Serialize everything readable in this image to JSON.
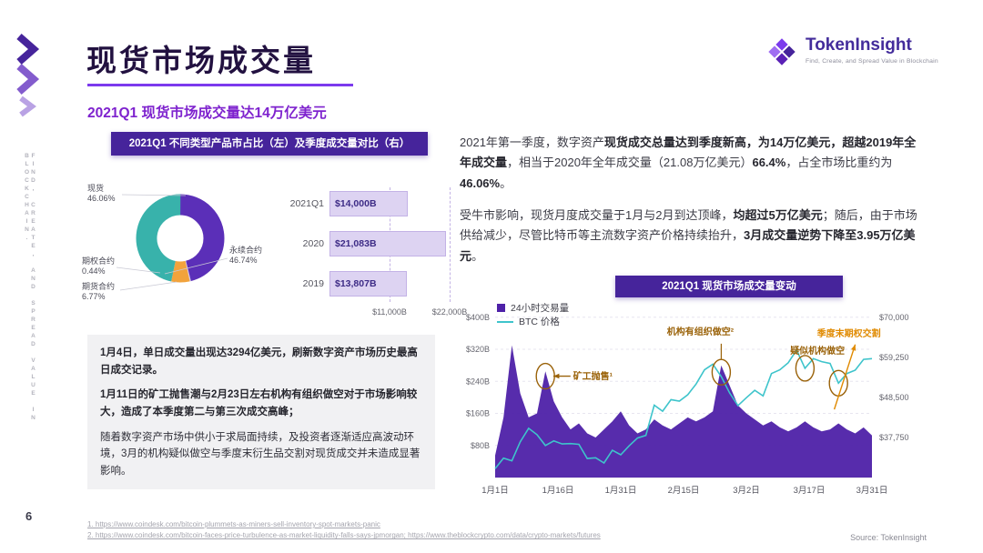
{
  "page": {
    "title": "现货市场成交量",
    "subtitle": "2021Q1 现货市场成交量达14万亿美元",
    "side_text": "FIND, CREATE, AND SPREAD VALUE IN BLOCKCHAIN.",
    "page_number": "6",
    "source": "Source: TokenInsight",
    "footnotes": [
      "1. https://www.coindesk.com/bitcoin-plummets-as-miners-sell-inventory-spot-markets-panic",
      "2. https://www.coindesk.com/bitcoin-faces-price-turbulence-as-market-liquidity-falls-says-jpmorgan; https://www.theblockcrypto.com/data/crypto-markets/futures"
    ]
  },
  "brand": {
    "name": "TokenInsight",
    "tagline": "Find, Create, and Spread Value in Blockchain"
  },
  "banners": {
    "left": "2021Q1 不同类型产品市占比（左）及季度成交量对比（右）",
    "right": "2021Q1 现货市场成交量变动"
  },
  "colors": {
    "banner_purple": "#46249B",
    "accent_purple": "#7C3AED",
    "area_purple": "#4E21A8",
    "price_teal": "#3EC4CB",
    "annotation_brown": "#9A6209",
    "annotation_orange": "#E08A00"
  },
  "paragraphs": {
    "right1": [
      {
        "t": "2021年第一季度，数字资产",
        "b": false
      },
      {
        "t": "现货成交总量达到季度新高，为14万亿美元，超越2019年全年成交量",
        "b": true
      },
      {
        "t": "，相当于2020年全年成交量（21.08万亿美元）",
        "b": false
      },
      {
        "t": "66.4%",
        "b": true
      },
      {
        "t": "，占全市场比重约为",
        "b": false
      },
      {
        "t": "46.06%",
        "b": true
      },
      {
        "t": "。",
        "b": false
      }
    ],
    "right2": [
      {
        "t": "受牛市影响，现货月度成交量于1月与2月到达顶峰，",
        "b": false
      },
      {
        "t": "均超过5万亿美元",
        "b": true
      },
      {
        "t": "；随后，由于市场供给减少，尽管比特币等主流数字资产价格持续抬升，",
        "b": false
      },
      {
        "t": "3月成交量逆势下降至3.95万亿美元",
        "b": true
      },
      {
        "t": "。",
        "b": false
      }
    ],
    "box1": [
      {
        "t": "1月4日，单日成交量出现达3294亿美元，刷新数字资产市场历史最高日成交记录。",
        "b": true
      }
    ],
    "box2": [
      {
        "t": "1月11日的矿工抛售潮与2月23日左右机构有组织做空对于市场影响较大，造成了本季度第二与第三次成交高峰；",
        "b": true
      }
    ],
    "box3": [
      {
        "t": "随着数字资产市场中供小于求局面持续，及投资者逐渐适应高波动环境，3月的机构疑似做空与季度末衍生品交割对现货成交并未造成显著影响。",
        "b": false
      }
    ]
  },
  "chart_data": [
    {
      "type": "pie",
      "title": "2021Q1 不同类型产品市占比",
      "segments": [
        {
          "label": "现货",
          "value": 46.06,
          "pct": "46.06%",
          "color": "#5B2FB8"
        },
        {
          "label": "期权合约",
          "value": 0.44,
          "pct": "0.44%",
          "color": "#CFC5EC"
        },
        {
          "label": "期货合约",
          "value": 6.77,
          "pct": "6.77%",
          "color": "#F2A33C"
        },
        {
          "label": "永续合约",
          "value": 46.74,
          "pct": "46.74%",
          "color": "#38B2AB"
        }
      ]
    },
    {
      "type": "bar",
      "title": "季度成交量对比",
      "xmax": 22000,
      "rows": [
        {
          "category": "2021Q1",
          "value": 14000,
          "label": "$14,000B"
        },
        {
          "category": "2020",
          "value": 21083,
          "label": "$21,083B"
        },
        {
          "category": "2019",
          "value": 13807,
          "label": "$13,807B"
        }
      ],
      "axis_ticks": [
        {
          "value": 11000,
          "label": "$11,000B"
        },
        {
          "value": 22000,
          "label": "$22,000B"
        }
      ]
    },
    {
      "type": "area+line",
      "title": "2021Q1 现货市场成交量变动",
      "legend": [
        {
          "label": "24小时交易量"
        },
        {
          "label": "BTC 价格"
        }
      ],
      "volume_color": "#4E21A8",
      "price_color": "#3EC4CB",
      "x_ticks": [
        "1月1日",
        "1月16日",
        "1月31日",
        "2月15日",
        "3月2日",
        "3月17日",
        "3月31日"
      ],
      "days": [
        0,
        2,
        4,
        6,
        8,
        10,
        12,
        14,
        16,
        18,
        20,
        22,
        24,
        26,
        28,
        30,
        32,
        34,
        36,
        38,
        40,
        42,
        44,
        46,
        48,
        50,
        52,
        54,
        56,
        58,
        60,
        62,
        64,
        66,
        68,
        70,
        72,
        74,
        76,
        78,
        80,
        82,
        84,
        86,
        88,
        90
      ],
      "volume": [
        55,
        150,
        330,
        210,
        150,
        160,
        265,
        190,
        150,
        120,
        135,
        110,
        100,
        120,
        140,
        165,
        130,
        110,
        120,
        145,
        130,
        120,
        135,
        150,
        140,
        150,
        165,
        280,
        230,
        180,
        160,
        145,
        130,
        140,
        125,
        115,
        125,
        140,
        125,
        115,
        120,
        135,
        120,
        110,
        125,
        105
      ],
      "price": [
        29400,
        32200,
        31500,
        36600,
        40200,
        38500,
        35600,
        36800,
        36000,
        36100,
        35900,
        32100,
        32300,
        30900,
        34300,
        33100,
        35500,
        37600,
        38300,
        46400,
        44800,
        47900,
        47500,
        49200,
        52100,
        55900,
        57400,
        54100,
        49700,
        46300,
        48400,
        50400,
        48900,
        54900,
        55900,
        57800,
        61200,
        56300,
        58900,
        58100,
        57600,
        52300,
        54900,
        55800,
        58700,
        58900
      ],
      "y_left": {
        "max": 400,
        "ticks": [
          {
            "v": 400,
            "label": "$400B"
          },
          {
            "v": 320,
            "label": "$320B"
          },
          {
            "v": 240,
            "label": "$240B"
          },
          {
            "v": 160,
            "label": "$160B"
          },
          {
            "v": 80,
            "label": "$80B"
          }
        ]
      },
      "y_right": {
        "min": 27000,
        "max": 70000,
        "ticks": [
          {
            "p": 70000,
            "label": "$70,000"
          },
          {
            "p": 59250,
            "label": "$59,250"
          },
          {
            "p": 48500,
            "label": "$48,500"
          },
          {
            "p": 37750,
            "label": "$37,750"
          }
        ]
      },
      "annotations": [
        {
          "label": "矿工抛售¹",
          "color": "#9A6209",
          "circle": {
            "day": 12,
            "v": 253
          },
          "text_at": {
            "day": 18.6,
            "v": 245,
            "anchor": "start"
          },
          "arrow": {
            "from": {
              "day": 18,
              "v": 253
            },
            "to": {
              "day": 13.9,
              "v": 253
            }
          }
        },
        {
          "label": "机构有组织做空²",
          "color": "#9A6209",
          "circle": {
            "day": 54,
            "v": 263
          },
          "text_at": {
            "day": 49,
            "v": 356,
            "anchor": "middle"
          },
          "line": {
            "from": {
              "day": 54,
              "v": 334
            },
            "to": {
              "day": 54,
              "v": 296
            }
          }
        },
        {
          "label": "疑似机构做空",
          "color": "#9A6209",
          "circles": [
            {
              "day": 74,
              "p": 56300
            },
            {
              "day": 82,
              "p": 52300
            }
          ],
          "text_at": {
            "day": 77,
            "v": 309,
            "anchor": "middle"
          }
        },
        {
          "label": "季度末期权交割",
          "color": "#E08A00",
          "text_at": {
            "day": 84.5,
            "v": 352,
            "anchor": "middle"
          },
          "arrow": {
            "from": {
              "day": 81,
              "v": 170
            },
            "to": {
              "day": 86,
              "v": 332
            }
          }
        }
      ]
    }
  ]
}
